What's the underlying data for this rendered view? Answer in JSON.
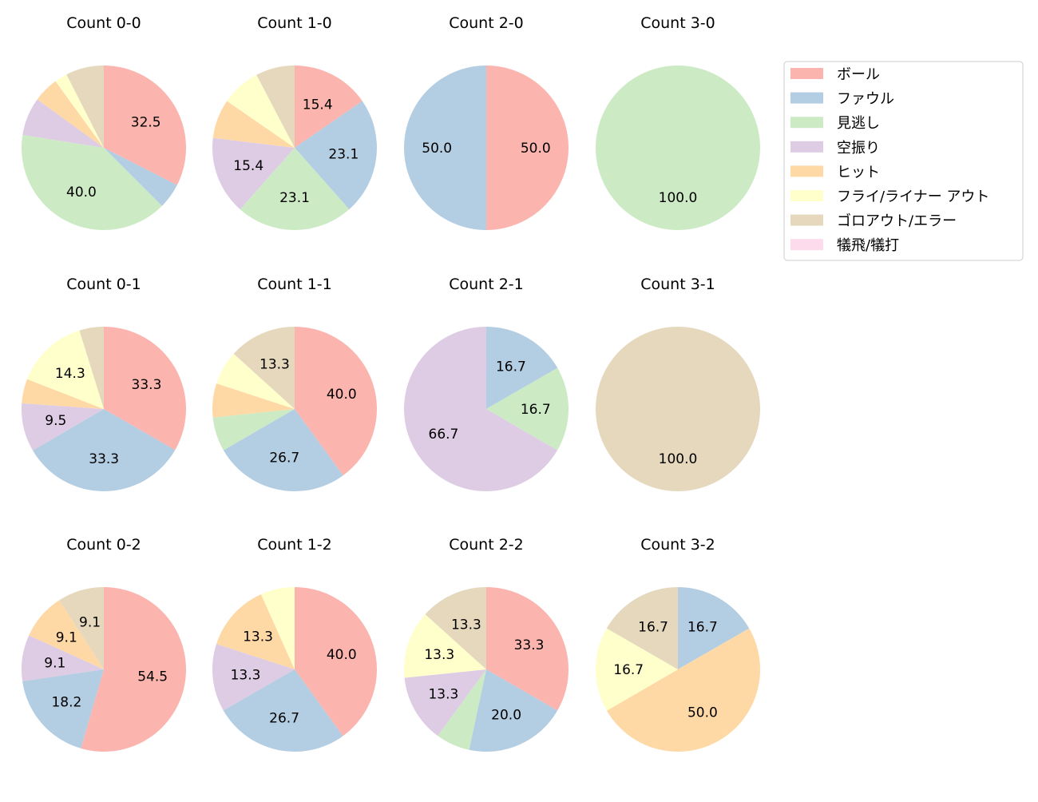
{
  "chart_data": [
    {
      "type": "pie",
      "title": "Count 0-0",
      "values": [
        32.5,
        5.0,
        40.0,
        7.5,
        5.0,
        2.5,
        7.5,
        0
      ]
    },
    {
      "type": "pie",
      "title": "Count 1-0",
      "values": [
        15.4,
        23.1,
        23.1,
        15.4,
        7.7,
        7.7,
        7.7,
        0
      ]
    },
    {
      "type": "pie",
      "title": "Count 2-0",
      "values": [
        50.0,
        50.0,
        0,
        0,
        0,
        0,
        0,
        0
      ]
    },
    {
      "type": "pie",
      "title": "Count 3-0",
      "values": [
        0,
        0,
        100.0,
        0,
        0,
        0,
        0,
        0
      ]
    },
    {
      "type": "pie",
      "title": "Count 0-1",
      "values": [
        33.3,
        33.3,
        0,
        9.5,
        4.8,
        14.3,
        4.8,
        0
      ]
    },
    {
      "type": "pie",
      "title": "Count 1-1",
      "values": [
        40.0,
        26.7,
        6.7,
        0,
        6.7,
        6.7,
        13.3,
        0
      ]
    },
    {
      "type": "pie",
      "title": "Count 2-1",
      "values": [
        0,
        16.7,
        16.7,
        66.7,
        0,
        0,
        0,
        0
      ]
    },
    {
      "type": "pie",
      "title": "Count 3-1",
      "values": [
        0,
        0,
        0,
        0,
        0,
        0,
        100.0,
        0
      ]
    },
    {
      "type": "pie",
      "title": "Count 0-2",
      "values": [
        54.5,
        18.2,
        0,
        9.1,
        9.1,
        0,
        9.1,
        0
      ]
    },
    {
      "type": "pie",
      "title": "Count 1-2",
      "values": [
        40.0,
        26.7,
        0,
        13.3,
        13.3,
        6.7,
        0,
        0
      ]
    },
    {
      "type": "pie",
      "title": "Count 2-2",
      "values": [
        33.3,
        20.0,
        6.7,
        13.3,
        0,
        13.3,
        13.3,
        0
      ]
    },
    {
      "type": "pie",
      "title": "Count 3-2",
      "values": [
        0,
        16.7,
        0,
        0,
        50.0,
        16.7,
        16.7,
        0
      ]
    }
  ],
  "legend": {
    "placement": "upper-right",
    "labels": [
      "ボール",
      "ファウル",
      "見逃し",
      "空振り",
      "ヒット",
      "フライ/ライナー アウト",
      "ゴロアウト/エラー",
      "犠飛/犠打"
    ],
    "colors": [
      "#fbb4ae",
      "#b3cde3",
      "#ccebc5",
      "#decbe4",
      "#fed9a6",
      "#ffffcc",
      "#e5d8bd",
      "#fddaec"
    ]
  },
  "start_angle_deg": 90,
  "direction": "clockwise",
  "label_format": "%.1f"
}
